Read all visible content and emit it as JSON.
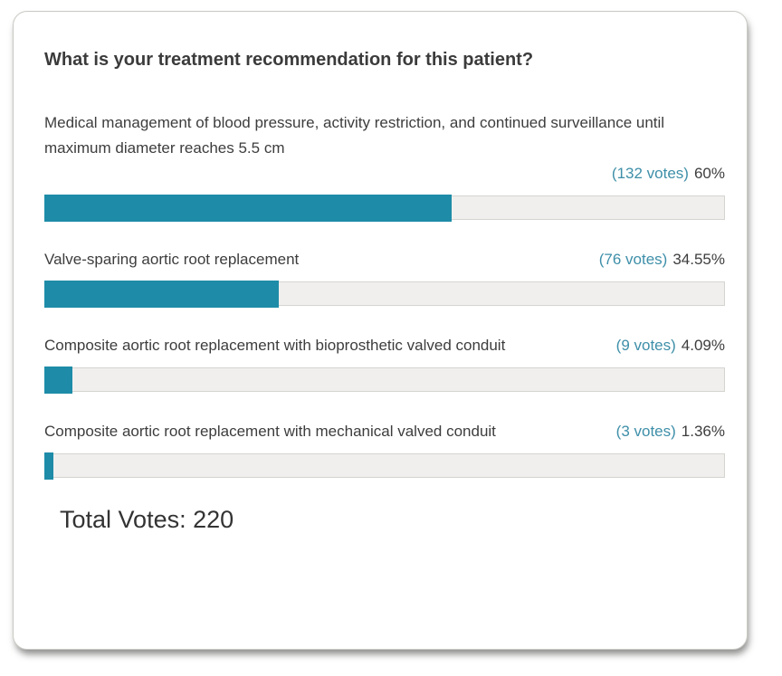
{
  "poll": {
    "question": "What is your treatment recommendation for this patient?",
    "options": [
      {
        "label": "Medical management of blood pressure, activity restriction, and continued surveillance until maximum diameter reaches 5.5 cm",
        "votes_label": "(132 votes)",
        "percent_label": "60%",
        "percent": 60
      },
      {
        "label": "Valve-sparing aortic root replacement",
        "votes_label": "(76 votes)",
        "percent_label": "34.55%",
        "percent": 34.55
      },
      {
        "label": "Composite aortic root replacement with bioprosthetic valved conduit",
        "votes_label": "(9 votes)",
        "percent_label": "4.09%",
        "percent": 4.09
      },
      {
        "label": "Composite aortic root replacement with mechanical valved conduit",
        "votes_label": "(3 votes)",
        "percent_label": "1.36%",
        "percent": 1.36
      }
    ],
    "total_votes_label": "Total Votes: 220",
    "colors": {
      "bar_fill": "#1e8ca8",
      "votes_link": "#3e8fa9",
      "bar_track": "#f0efee",
      "bar_track_border": "#d4d4d0",
      "text": "#3d3d3d"
    }
  },
  "chart_data": {
    "type": "bar",
    "orientation": "horizontal",
    "title": "What is your treatment recommendation for this patient?",
    "categories": [
      "Medical management of blood pressure, activity restriction, and continued surveillance until maximum diameter reaches 5.5 cm",
      "Valve-sparing aortic root replacement",
      "Composite aortic root replacement with bioprosthetic valved conduit",
      "Composite aortic root replacement with mechanical valved conduit"
    ],
    "values": [
      60,
      34.55,
      4.09,
      1.36
    ],
    "votes": [
      132,
      76,
      9,
      3
    ],
    "total_votes": 220,
    "value_unit": "%",
    "xlim": [
      0,
      100
    ],
    "bar_color": "#1e8ca8",
    "legend": false,
    "grid": false
  }
}
